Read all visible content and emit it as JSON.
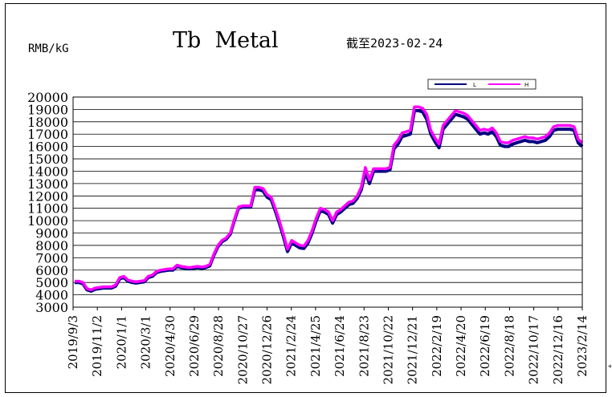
{
  "chart_data": {
    "type": "line",
    "title": "Tb  Metal",
    "subtitle": "截至2023-02-24",
    "ylabel": "RMB/kG",
    "xlabel": "",
    "ylim": [
      3000,
      20000
    ],
    "y_ticks": [
      3000,
      4000,
      5000,
      6000,
      7000,
      8000,
      9000,
      10000,
      11000,
      12000,
      13000,
      14000,
      15000,
      16000,
      17000,
      18000,
      19000,
      20000
    ],
    "x_tick_labels": [
      "2019/9/3",
      "2019/11/2",
      "2020/1/1",
      "2020/3/1",
      "2020/4/30",
      "2020/6/29",
      "2020/8/28",
      "2020/10/27",
      "2020/12/26",
      "2021/2/24",
      "2021/4/25",
      "2021/6/24",
      "2021/8/23",
      "2021/10/22",
      "2021/12/21",
      "2022/2/19",
      "2022/4/20",
      "2022/6/19",
      "2022/8/18",
      "2022/10/17",
      "2022/12/16",
      "2023/2/14"
    ],
    "grid": true,
    "legend_position": "top-right",
    "series": [
      {
        "name": "L",
        "color": "#000080",
        "values": [
          5000,
          5000,
          4900,
          4400,
          4300,
          4450,
          4500,
          4550,
          4550,
          4550,
          4700,
          5300,
          5400,
          5100,
          5000,
          4950,
          5000,
          5050,
          5400,
          5500,
          5800,
          5900,
          5950,
          6000,
          6000,
          6300,
          6200,
          6150,
          6100,
          6150,
          6200,
          6150,
          6200,
          6350,
          7200,
          7900,
          8300,
          8500,
          8900,
          10000,
          11000,
          11100,
          11100,
          11100,
          12500,
          12500,
          12400,
          11900,
          11700,
          10800,
          9800,
          8700,
          7500,
          8200,
          8000,
          7800,
          7750,
          8200,
          9000,
          10000,
          10800,
          10700,
          10500,
          9800,
          10500,
          10700,
          11000,
          11300,
          11400,
          11800,
          12500,
          13900,
          13000,
          14000,
          14000,
          14000,
          14000,
          14100,
          15800,
          16200,
          16800,
          16900,
          17000,
          18900,
          18900,
          18800,
          18200,
          17000,
          16400,
          15900,
          17400,
          17800,
          18200,
          18600,
          18500,
          18400,
          18200,
          17800,
          17400,
          17000,
          17100,
          17000,
          17200,
          16800,
          16100,
          16000,
          16000,
          16200,
          16300,
          16400,
          16500,
          16400,
          16400,
          16300,
          16400,
          16500,
          16800,
          17300,
          17400,
          17400,
          17400,
          17400,
          17300,
          16300,
          16000
        ]
      },
      {
        "name": "H",
        "color": "#ff00ff",
        "values": [
          5100,
          5100,
          5000,
          4500,
          4400,
          4550,
          4600,
          4650,
          4650,
          4650,
          4800,
          5400,
          5500,
          5200,
          5100,
          5050,
          5100,
          5150,
          5500,
          5600,
          5900,
          6000,
          6050,
          6100,
          6100,
          6400,
          6300,
          6250,
          6200,
          6250,
          6300,
          6250,
          6300,
          6450,
          7300,
          8000,
          8400,
          8600,
          9000,
          10100,
          11100,
          11200,
          11200,
          11200,
          12700,
          12700,
          12600,
          12100,
          11900,
          11000,
          10000,
          8900,
          7700,
          8400,
          8200,
          8000,
          7950,
          8400,
          9200,
          10200,
          11000,
          10900,
          10700,
          10000,
          10700,
          10900,
          11200,
          11500,
          11600,
          12000,
          12700,
          14300,
          13300,
          14200,
          14200,
          14200,
          14200,
          14300,
          16100,
          16500,
          17100,
          17200,
          17300,
          19200,
          19200,
          19100,
          18600,
          17300,
          16700,
          16200,
          17700,
          18100,
          18500,
          18900,
          18800,
          18700,
          18500,
          18100,
          17700,
          17300,
          17400,
          17300,
          17500,
          17100,
          16400,
          16300,
          16300,
          16500,
          16600,
          16700,
          16800,
          16700,
          16700,
          16600,
          16700,
          16800,
          17100,
          17600,
          17700,
          17700,
          17700,
          17700,
          17600,
          16600,
          16300
        ]
      }
    ]
  }
}
